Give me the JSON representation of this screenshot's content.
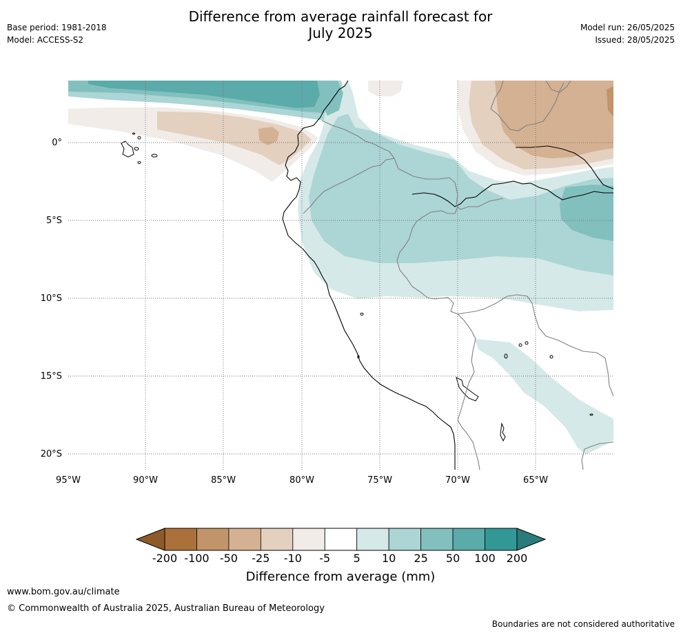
{
  "header": {
    "title_line1": "Difference from average rainfall forecast for",
    "title_line2": "July 2025",
    "base_period": "Base period: 1981-2018",
    "model": "Model: ACCESS-S2",
    "model_run": "Model run: 26/05/2025",
    "issued": "Issued: 28/05/2025"
  },
  "map": {
    "lon_labels": [
      "95°W",
      "90°W",
      "85°W",
      "80°W",
      "75°W",
      "70°W",
      "65°W"
    ],
    "lat_labels": [
      "0°",
      "5°S",
      "10°S",
      "15°S",
      "20°S"
    ],
    "graticule_lons": [
      -95,
      -90,
      -85,
      -80,
      -75,
      -70,
      -65
    ],
    "graticule_lats": [
      0,
      -5,
      -10,
      -15,
      -20
    ],
    "extent": {
      "lon_min": -95,
      "lon_max": -60,
      "lat_min": -21,
      "lat_max": 4
    }
  },
  "colorbar": {
    "label": "Difference from average (mm)",
    "tick_labels": [
      "-200",
      "-100",
      "-50",
      "-25",
      "-10",
      "-5",
      "5",
      "10",
      "25",
      "50",
      "100",
      "200"
    ],
    "bin_colors": [
      "#ab713a",
      "#c2946a",
      "#d4b192",
      "#e3d0bf",
      "#f1ece8",
      "#ffffff",
      "#d5e9e8",
      "#acd5d5",
      "#82c0be",
      "#5aabaa",
      "#329896"
    ],
    "low_extend_color": "#8f5a2a",
    "high_extend_color": "#2a7c7a"
  },
  "footer": {
    "url": "www.bom.gov.au/climate",
    "copyright": "© Commonwealth of Australia 2025, Australian Bureau of Meteorology",
    "disclaimer": "Boundaries are not considered authoritative"
  }
}
